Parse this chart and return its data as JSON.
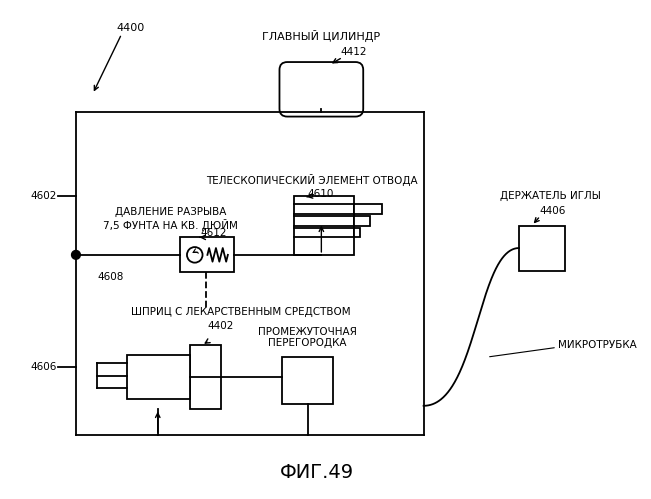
{
  "title": "ФИГ.49",
  "background_color": "#ffffff",
  "line_color": "#000000",
  "font_size_label": 7.5,
  "font_size_title": 14,
  "labels": {
    "main_cylinder": "ГЛАВНЫЙ ЦИЛИНДР",
    "main_cylinder_num": "4412",
    "telescopic": "ТЕЛЕСКОПИЧЕСКИЙ ЭЛЕМЕНТ ОТВОДА",
    "telescopic_num": "4610",
    "pressure": "ДАВЛЕНИЕ РАЗРЫВА\n7,5 ФУНТА НА КВ. ДЮЙМ",
    "pressure_num": "4612",
    "needle_holder": "ДЕРЖАТЕЛЬ ИГЛЫ",
    "needle_holder_num": "4406",
    "syringe": "ШПРИЦ С ЛЕКАРСТВЕННЫМ СРЕДСТВОМ",
    "syringe_num": "4402",
    "septum": "ПРОМЕЖУТОЧНАЯ\nПЕРЕГОРОДКА",
    "microtube": "МИКРОТРУБКА",
    "ref4400": "4400",
    "ref4602": "4602",
    "ref4608": "4608",
    "ref4606": "4606"
  }
}
